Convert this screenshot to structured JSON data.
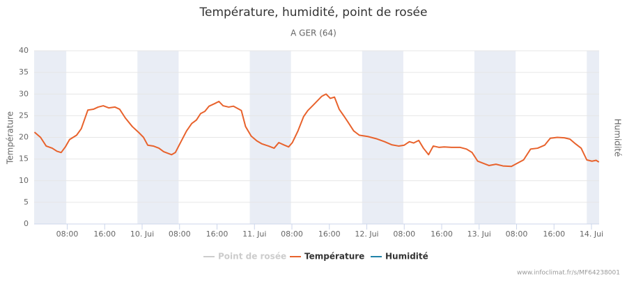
{
  "chart_data": {
    "type": "line",
    "title": "Température, humidité, point de rosée",
    "subtitle": "A GER (64)",
    "y_label": "Température",
    "y2_label": "Humidité",
    "credit": "www.infoclimat.fr/s/MF64238001",
    "xlim": [
      0.93,
      121.64
    ],
    "xticks": [
      {
        "value": 8,
        "label": "08:00"
      },
      {
        "value": 16,
        "label": "16:00"
      },
      {
        "value": 24,
        "label": "10. Jui"
      },
      {
        "value": 32,
        "label": "08:00"
      },
      {
        "value": 40,
        "label": "16:00"
      },
      {
        "value": 48,
        "label": "11. Jui"
      },
      {
        "value": 56,
        "label": "08:00"
      },
      {
        "value": 64,
        "label": "16:00"
      },
      {
        "value": 72,
        "label": "12. Jui"
      },
      {
        "value": 80,
        "label": "08:00"
      },
      {
        "value": 88,
        "label": "16:00"
      },
      {
        "value": 96,
        "label": "13. Jui"
      },
      {
        "value": 104,
        "label": "08:00"
      },
      {
        "value": 112,
        "label": "16:00"
      },
      {
        "value": 120,
        "label": "14. Jui"
      }
    ],
    "ylim": [
      0,
      40
    ],
    "yticks": [
      0,
      5,
      10,
      15,
      20,
      25,
      30,
      35,
      40
    ],
    "grid": true,
    "plot_bands": [
      [
        0.93,
        7.8
      ],
      [
        23,
        31.8
      ],
      [
        47,
        55.8
      ],
      [
        71,
        79.8
      ],
      [
        95,
        103.8
      ],
      [
        119,
        121.64
      ]
    ],
    "band_color": "#e9edf5",
    "x": [
      1,
      2.3,
      3.5,
      4.8,
      5.8,
      6.7,
      7.6,
      8.5,
      10,
      11,
      12.4,
      13.6,
      14.6,
      15.7,
      16.9,
      18.2,
      19.2,
      20.4,
      21.9,
      23.4,
      24.3,
      25.2,
      26.4,
      27.6,
      28.6,
      30.3,
      31.1,
      32.3,
      33.5,
      34.6,
      35.6,
      36.5,
      37.4,
      38.3,
      39.5,
      40.4,
      41.3,
      42.5,
      43.5,
      45.2,
      46.1,
      47.3,
      48.5,
      49.6,
      51,
      52.2,
      53.2,
      54.4,
      55.3,
      56.1,
      57.3,
      58.5,
      59.4,
      60.6,
      61.5,
      62.4,
      63.3,
      64.2,
      65.1,
      66.1,
      67.2,
      68,
      69.2,
      70.4,
      72.2,
      74,
      75.8,
      77.3,
      78.8,
      80,
      81.1,
      82,
      83.1,
      84.1,
      85.2,
      86.2,
      87.4,
      88.6,
      90.1,
      91.9,
      93.3,
      94.5,
      95.7,
      96.9,
      98.1,
      99.6,
      101.1,
      102.9,
      104.1,
      105.5,
      107,
      108.5,
      110,
      111.2,
      112.7,
      114.2,
      115.4,
      116.6,
      117.8,
      119,
      120.1,
      121,
      121.6
    ],
    "series": [
      {
        "name": "Point de rosée",
        "color": "#cccccc",
        "visible": false
      },
      {
        "name": "Température",
        "color": "#e8622c",
        "values": [
          21.2,
          20,
          18,
          17.5,
          16.8,
          16.5,
          17.8,
          19.5,
          20.5,
          22,
          26.3,
          26.5,
          27,
          27.3,
          26.8,
          27,
          26.5,
          24.5,
          22.5,
          21,
          20,
          18.2,
          18,
          17.5,
          16.7,
          16,
          16.5,
          19,
          21.5,
          23.2,
          24,
          25.5,
          26,
          27.2,
          27.8,
          28.3,
          27.3,
          27,
          27.2,
          26.2,
          22.5,
          20.3,
          19.2,
          18.5,
          18,
          17.5,
          18.8,
          18.2,
          17.8,
          18.8,
          21.5,
          24.8,
          26.2,
          27.5,
          28.5,
          29.5,
          30,
          29,
          29.3,
          26.5,
          24.8,
          23.5,
          21.5,
          20.5,
          20.2,
          19.7,
          19,
          18.3,
          18,
          18.2,
          19,
          18.7,
          19.3,
          17.5,
          16,
          18,
          17.7,
          17.8,
          17.7,
          17.7,
          17.3,
          16.5,
          14.5,
          14,
          13.5,
          13.8,
          13.4,
          13.3,
          14,
          14.8,
          17.3,
          17.5,
          18.2,
          19.8,
          20,
          19.9,
          19.6,
          18.5,
          17.5,
          14.8,
          14.5,
          14.7,
          14.3
        ]
      },
      {
        "name": "Humidité",
        "color": "#1f82a8"
      }
    ]
  }
}
